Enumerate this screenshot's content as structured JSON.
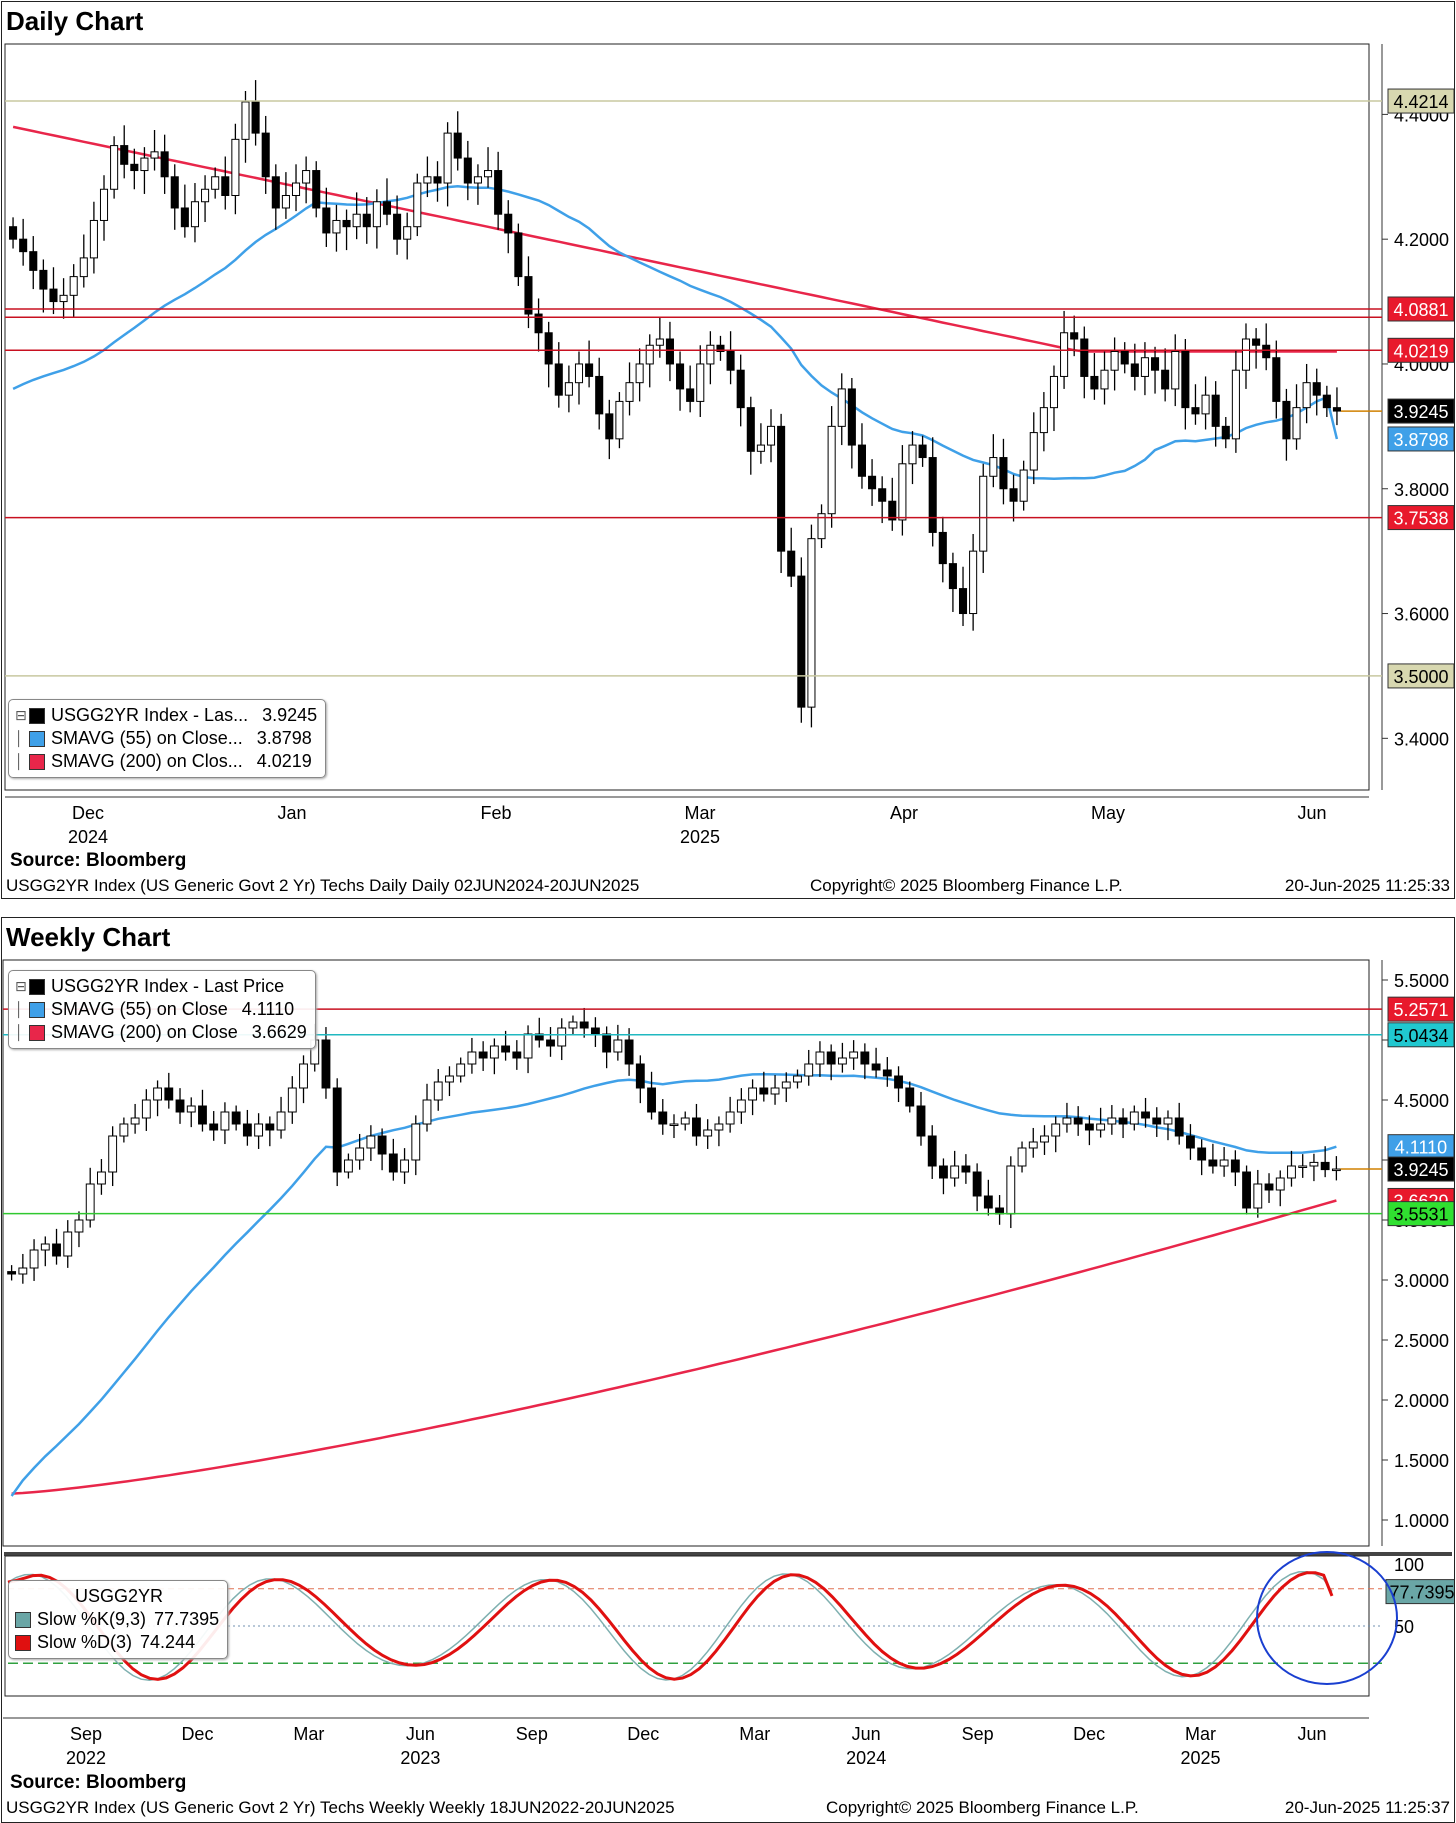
{
  "daily": {
    "title": "Daily Chart",
    "source": "Source: Bloomberg",
    "footer_left": "USGG2YR Index (US Generic Govt 2 Yr) Techs Daily  Daily 02JUN2024-20JUN2025",
    "footer_mid": "Copyright© 2025 Bloomberg Finance L.P.",
    "footer_right": "20-Jun-2025 11:25:33",
    "legend": [
      {
        "label": "USGG2YR Index - Las...",
        "value": "3.9245",
        "color": "#000000"
      },
      {
        "label": "SMAVG (55)  on Close...",
        "value": "3.8798",
        "color": "#3fa0e8"
      },
      {
        "label": "SMAVG (200)  on Clos...",
        "value": "4.0219",
        "color": "#e8264a"
      }
    ]
  },
  "weekly": {
    "title": "Weekly Chart",
    "source": "Source: Bloomberg",
    "footer_left": "USGG2YR Index (US Generic Govt 2 Yr) Techs Weekly  Weekly 18JUN2022-20JUN2025",
    "footer_mid": "Copyright© 2025 Bloomberg Finance L.P.",
    "footer_right": "20-Jun-2025 11:25:37",
    "legend": [
      {
        "label": "USGG2YR Index - Last Price",
        "value": "",
        "color": "#000000"
      },
      {
        "label": "SMAVG (55)  on Close",
        "value": "4.1110",
        "color": "#3fa0e8"
      },
      {
        "label": "SMAVG (200)  on Close",
        "value": "3.6629",
        "color": "#e8264a"
      }
    ],
    "stoch_legend": {
      "title": "USGG2YR",
      "rows": [
        {
          "label": "Slow %K(9,3)",
          "value": "77.7395",
          "color": "#6aa6a6"
        },
        {
          "label": "Slow %D(3)",
          "value": "74.244",
          "color": "#e01010"
        }
      ]
    }
  },
  "chart_data": [
    {
      "type": "candlestick",
      "title": "Daily Chart",
      "y_ticks": [
        3.4,
        3.6,
        3.8,
        4.0,
        4.2,
        4.4
      ],
      "y_tick_labels": [
        "3.4000",
        "3.6000",
        "3.8000",
        "4.0000",
        "4.2000",
        "4.4000"
      ],
      "ylim": [
        3.33,
        4.5
      ],
      "x_labels": [
        {
          "label": "Dec",
          "sub": "2024"
        },
        {
          "label": "Jan",
          "sub": ""
        },
        {
          "label": "Feb",
          "sub": ""
        },
        {
          "label": "Mar",
          "sub": "2025"
        },
        {
          "label": "Apr",
          "sub": ""
        },
        {
          "label": "May",
          "sub": ""
        },
        {
          "label": "Jun",
          "sub": ""
        }
      ],
      "closes": [
        4.2,
        4.18,
        4.15,
        4.12,
        4.1,
        4.11,
        4.14,
        4.17,
        4.23,
        4.28,
        4.35,
        4.32,
        4.31,
        4.33,
        4.34,
        4.3,
        4.25,
        4.22,
        4.26,
        4.28,
        4.3,
        4.27,
        4.36,
        4.42,
        4.37,
        4.3,
        4.25,
        4.27,
        4.29,
        4.31,
        4.25,
        4.21,
        4.23,
        4.22,
        4.24,
        4.22,
        4.26,
        4.24,
        4.2,
        4.22,
        4.29,
        4.3,
        4.29,
        4.37,
        4.33,
        4.29,
        4.3,
        4.31,
        4.24,
        4.21,
        4.14,
        4.08,
        4.05,
        4.0,
        3.95,
        3.97,
        4.0,
        3.98,
        3.92,
        3.88,
        3.94,
        3.97,
        4.0,
        4.03,
        4.04,
        4.0,
        3.96,
        3.94,
        4.0,
        4.03,
        4.02,
        3.99,
        3.93,
        3.86,
        3.87,
        3.9,
        3.7,
        3.66,
        3.45,
        3.72,
        3.76,
        3.9,
        3.96,
        3.87,
        3.82,
        3.8,
        3.78,
        3.75,
        3.84,
        3.87,
        3.85,
        3.73,
        3.68,
        3.64,
        3.6,
        3.7,
        3.82,
        3.85,
        3.8,
        3.78,
        3.83,
        3.89,
        3.93,
        3.98,
        4.05,
        4.04,
        3.98,
        3.96,
        3.99,
        4.02,
        4.0,
        3.98,
        4.01,
        3.99,
        3.96,
        4.02,
        3.93,
        3.92,
        3.95,
        3.9,
        3.88,
        3.99,
        4.04,
        4.03,
        4.01,
        3.94,
        3.88,
        3.93,
        3.97,
        3.95,
        3.93,
        3.9245
      ],
      "series": [
        {
          "name": "SMAVG (55)  on Close",
          "last": 3.8798
        },
        {
          "name": "SMAVG (200)  on Close",
          "last": 4.0219
        }
      ],
      "levels": [
        {
          "value": 4.4214,
          "label": "4.4214",
          "color": "#c8c8a0",
          "bg": "#d8d8b0"
        },
        {
          "value": 4.0881,
          "label": "4.0881",
          "color": "#c81020",
          "bg": "#e8192c"
        },
        {
          "value": 4.0749,
          "label": "",
          "color": "#c81020",
          "bg": "#e8192c"
        },
        {
          "value": 4.0219,
          "label": "4.0219",
          "color": "#c81020",
          "bg": "#e8192c"
        },
        {
          "value": 3.9245,
          "label": "3.9245",
          "color": "#d08000",
          "bg": "#000000"
        },
        {
          "value": 3.8798,
          "label": "3.8798",
          "color": "#3fa0e8",
          "bg": "#3fa0e8"
        },
        {
          "value": 3.7538,
          "label": "3.7538",
          "color": "#c81020",
          "bg": "#e8192c"
        },
        {
          "value": 3.5,
          "label": "3.5000",
          "color": "#c8c8a0",
          "bg": "#d8d8b0"
        }
      ]
    },
    {
      "type": "candlestick",
      "title": "Weekly Chart",
      "y_ticks": [
        1.0,
        1.5,
        2.0,
        2.5,
        3.0,
        3.5,
        4.0,
        4.5,
        5.0,
        5.5
      ],
      "y_tick_labels": [
        "1.0000",
        "1.5000",
        "2.0000",
        "2.5000",
        "3.0000",
        "3.5000",
        "4.0000",
        "4.5000",
        "5.0000",
        "5.5000"
      ],
      "ylim": [
        0.85,
        5.6
      ],
      "x_labels": [
        {
          "label": "Sep",
          "sub": "2022"
        },
        {
          "label": "Dec",
          "sub": ""
        },
        {
          "label": "Mar",
          "sub": ""
        },
        {
          "label": "Jun",
          "sub": "2023"
        },
        {
          "label": "Sep",
          "sub": ""
        },
        {
          "label": "Dec",
          "sub": ""
        },
        {
          "label": "Mar",
          "sub": ""
        },
        {
          "label": "Jun",
          "sub": "2024"
        },
        {
          "label": "Sep",
          "sub": ""
        },
        {
          "label": "Dec",
          "sub": ""
        },
        {
          "label": "Mar",
          "sub": "2025"
        },
        {
          "label": "Jun",
          "sub": ""
        }
      ],
      "closes": [
        3.05,
        3.1,
        3.25,
        3.3,
        3.2,
        3.4,
        3.5,
        3.8,
        3.9,
        4.2,
        4.3,
        4.35,
        4.5,
        4.6,
        4.5,
        4.4,
        4.45,
        4.3,
        4.25,
        4.4,
        4.3,
        4.2,
        4.3,
        4.25,
        4.4,
        4.6,
        4.8,
        5.0,
        4.6,
        3.9,
        4.0,
        4.1,
        4.2,
        4.05,
        3.9,
        4.0,
        4.3,
        4.5,
        4.65,
        4.7,
        4.8,
        4.9,
        4.85,
        4.95,
        4.9,
        4.85,
        5.05,
        5.0,
        4.95,
        5.1,
        5.15,
        5.1,
        5.05,
        4.9,
        5.0,
        4.8,
        4.6,
        4.4,
        4.3,
        4.3,
        4.35,
        4.2,
        4.25,
        4.3,
        4.4,
        4.5,
        4.6,
        4.55,
        4.6,
        4.65,
        4.7,
        4.8,
        4.9,
        4.8,
        4.85,
        4.9,
        4.8,
        4.75,
        4.7,
        4.6,
        4.45,
        4.2,
        3.95,
        3.85,
        3.95,
        3.9,
        3.7,
        3.6,
        3.55,
        3.95,
        4.1,
        4.15,
        4.2,
        4.3,
        4.35,
        4.3,
        4.25,
        4.3,
        4.35,
        4.3,
        4.4,
        4.35,
        4.3,
        4.35,
        4.2,
        4.1,
        4.0,
        3.95,
        4.0,
        3.9,
        3.6,
        3.8,
        3.75,
        3.85,
        3.95,
        3.95,
        3.98,
        3.92,
        3.9245
      ],
      "series": [
        {
          "name": "SMAVG (55)  on Close",
          "last": 4.111
        },
        {
          "name": "SMAVG (200)  on Close",
          "last": 3.6629
        }
      ],
      "levels": [
        {
          "value": 5.2571,
          "label": "5.2571",
          "color": "#c81020",
          "bg": "#e8192c"
        },
        {
          "value": 5.0434,
          "label": "5.0434",
          "color": "#20b8c0",
          "bg": "#20c8d0"
        },
        {
          "value": 4.111,
          "label": "4.1110",
          "color": "#3fa0e8",
          "bg": "#3fa0e8"
        },
        {
          "value": 3.9245,
          "label": "3.9245",
          "color": "#d08000",
          "bg": "#000000"
        },
        {
          "value": 3.6629,
          "label": "3.6629",
          "color": "#e8192c",
          "bg": "#e8192c"
        },
        {
          "value": 3.5531,
          "label": "3.5531",
          "color": "#30c830",
          "bg": "#30e030"
        }
      ]
    },
    {
      "type": "line",
      "title": "USGG2YR",
      "y_ticks": [
        50,
        100
      ],
      "ylim": [
        0,
        100
      ],
      "guides": [
        80,
        50,
        20
      ],
      "series": [
        {
          "name": "Slow %K(9,3)",
          "last": 77.7395
        },
        {
          "name": "Slow %D(3)",
          "last": 74.244
        }
      ],
      "last_label": "77.7395"
    }
  ]
}
